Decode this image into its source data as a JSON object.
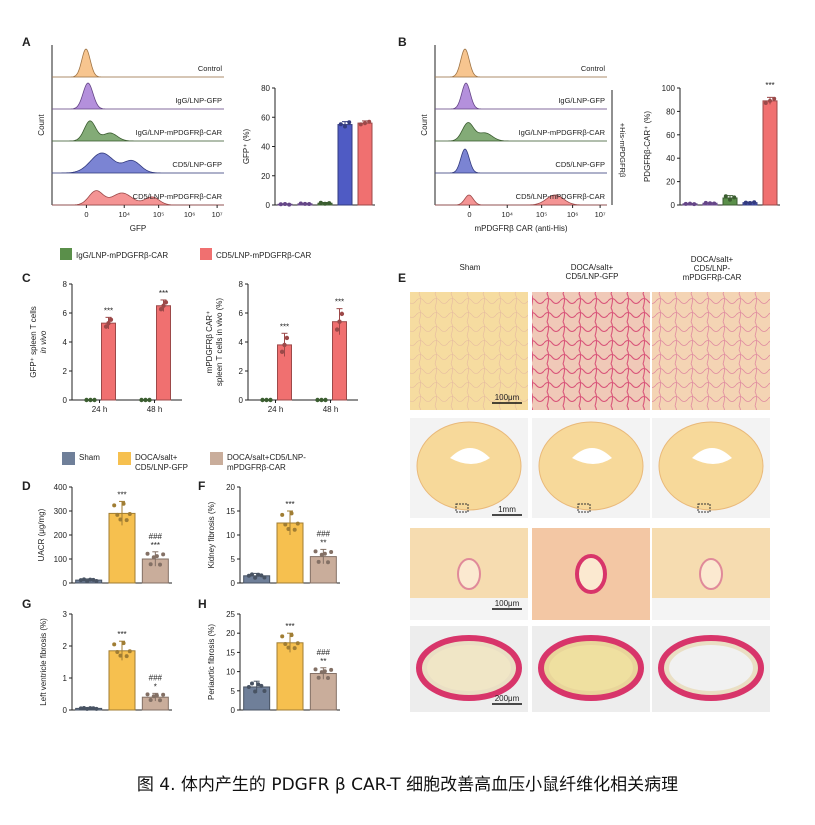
{
  "caption": "图 4. 体内产生的 PDGFR β CAR-T 细胞改善高血压小鼠纤维化相关病理",
  "colors": {
    "control": "#f4b26a",
    "igg_gfp": "#9b6bd0",
    "igg_car": "#5a8f4a",
    "cd5_gfp": "#4f5bc4",
    "cd5_car": "#f07070",
    "sham": "#6f7f99",
    "doca_gfp": "#f6c04f",
    "doca_car": "#c9ad9b"
  },
  "panelA": {
    "label": "A",
    "hist_labels": [
      "Control",
      "IgG/LNP-GFP",
      "IgG/LNP-mPDGFRβ-CAR",
      "CD5/LNP-GFP",
      "CD5/LNP-mPDGFRβ-CAR"
    ],
    "xlabel": "GFP",
    "ylabel": "Count",
    "xticks": [
      "0",
      "10⁴",
      "10⁵",
      "10⁶",
      "10⁷"
    ],
    "bar_ylabel": "GFP⁺ (%)"
  },
  "panelB": {
    "label": "B",
    "hist_labels": [
      "Control",
      "IgG/LNP-GFP",
      "IgG/LNP-mPDGFRβ-CAR",
      "CD5/LNP-GFP",
      "CD5/LNP-mPDGFRβ-CAR"
    ],
    "side_label": "+His-mPDGFRβ",
    "xlabel": "mPDGFRβ CAR (anti-His)",
    "ylabel": "Count",
    "xticks": [
      "0",
      "10⁴",
      "10⁵",
      "10⁶",
      "10⁷"
    ],
    "bar_ylabel": "PDGFRβ-CAR⁺ (%)",
    "sig": "***"
  },
  "panelC": {
    "label": "C",
    "legend": [
      "IgG/LNP-mPDGFRβ-CAR",
      "CD5/LNP-mPDGFRβ-CAR"
    ],
    "left_ylabel_1": "GFP⁺ spleen T cells",
    "left_ylabel_2": "in vivo",
    "right_ylabel_1": "mPDGFRβ CAR⁺",
    "right_ylabel_2": "spleen T cells in vivo (%)",
    "sig": "***"
  },
  "panelE": {
    "label": "E",
    "col_labels": [
      "Sham",
      "DOCA/salt+\nCD5/LNP-GFP",
      "DOCA/salt+\nCD5/LNP-\nmPDGFRβ-CAR"
    ],
    "scale_bars": [
      "100μm",
      "1mm",
      "100μm",
      "200μm"
    ]
  },
  "legendDH": [
    "Sham",
    "DOCA/salt+\nCD5/LNP-GFP",
    "DOCA/salt+CD5/LNP-\nmPDGFRβ-CAR"
  ],
  "panelD": {
    "label": "D",
    "ylabel": "UACR (μg/mg)"
  },
  "panelF": {
    "label": "F",
    "ylabel": "Kidney fibrosis (%)"
  },
  "panelG": {
    "label": "G",
    "ylabel": "Left ventricle fibrosis (%)"
  },
  "panelH": {
    "label": "H",
    "ylabel": "Periaortic fibrosis (%)"
  },
  "chart_data": [
    {
      "id": "A_bar",
      "type": "bar",
      "title": "",
      "ylabel": "GFP⁺ (%)",
      "ylim": [
        0,
        80
      ],
      "yticks": [
        0,
        20,
        40,
        60,
        80
      ],
      "categories": [
        "Control",
        "IgG/LNP-GFP",
        "IgG/LNP-mPDGFRβ-CAR",
        "CD5/LNP-GFP",
        "CD5/LNP-mPDGFRβ-CAR"
      ],
      "values": [
        0.5,
        0.8,
        1.2,
        55,
        56
      ],
      "errors": [
        0.3,
        0.3,
        0.5,
        2,
        1.5
      ]
    },
    {
      "id": "B_bar",
      "type": "bar",
      "title": "",
      "ylabel": "PDGFRβ-CAR⁺ (%)",
      "ylim": [
        0,
        100
      ],
      "yticks": [
        0,
        20,
        40,
        60,
        80,
        100
      ],
      "categories": [
        "Control",
        "IgG/LNP-GFP",
        "IgG/LNP-mPDGFRβ-CAR",
        "CD5/LNP-GFP",
        "CD5/LNP-mPDGFRβ-CAR"
      ],
      "values": [
        1,
        1.5,
        6,
        2,
        89
      ],
      "errors": [
        0.3,
        0.4,
        2,
        0.5,
        3
      ]
    },
    {
      "id": "C_left",
      "type": "bar",
      "ylabel": "GFP⁺ spleen T cells in vivo",
      "ylim": [
        0,
        8
      ],
      "yticks": [
        0,
        2,
        4,
        6,
        8
      ],
      "categories": [
        "24 h",
        "48 h"
      ],
      "series": [
        {
          "name": "IgG/LNP-mPDGFRβ-CAR",
          "values": [
            0,
            0
          ]
        },
        {
          "name": "CD5/LNP-mPDGFRβ-CAR",
          "values": [
            5.3,
            6.5
          ]
        }
      ],
      "errors": [
        [
          0,
          0
        ],
        [
          0.4,
          0.4
        ]
      ]
    },
    {
      "id": "C_right",
      "type": "bar",
      "ylabel": "mPDGFRβ CAR⁺ spleen T cells in vivo (%)",
      "ylim": [
        0,
        8
      ],
      "yticks": [
        0,
        2,
        4,
        6,
        8
      ],
      "categories": [
        "24 h",
        "48 h"
      ],
      "series": [
        {
          "name": "IgG/LNP-mPDGFRβ-CAR",
          "values": [
            0,
            0
          ]
        },
        {
          "name": "CD5/LNP-mPDGFRβ-CAR",
          "values": [
            3.8,
            5.4
          ]
        }
      ],
      "errors": [
        [
          0,
          0
        ],
        [
          0.8,
          0.9
        ]
      ]
    },
    {
      "id": "D",
      "type": "bar",
      "ylabel": "UACR (μg/mg)",
      "ylim": [
        0,
        400
      ],
      "yticks": [
        0,
        100,
        200,
        300,
        400
      ],
      "categories": [
        "Sham",
        "DOCA/salt+CD5/LNP-GFP",
        "DOCA/salt+CD5/LNP-mPDGFRβ-CAR"
      ],
      "values": [
        12,
        290,
        100
      ],
      "errors": [
        5,
        50,
        30
      ],
      "sig": [
        "",
        "***",
        "###\n***"
      ]
    },
    {
      "id": "F",
      "type": "bar",
      "ylabel": "Kidney fibrosis (%)",
      "ylim": [
        0,
        20
      ],
      "yticks": [
        0,
        5,
        10,
        15,
        20
      ],
      "categories": [
        "Sham",
        "DOCA/salt+CD5/LNP-GFP",
        "DOCA/salt+CD5/LNP-mPDGFRβ-CAR"
      ],
      "values": [
        1.5,
        12.5,
        5.5
      ],
      "errors": [
        0.5,
        2.5,
        1.5
      ],
      "sig": [
        "",
        "***",
        "###\n**"
      ]
    },
    {
      "id": "G",
      "type": "bar",
      "ylabel": "Left ventricle fibrosis (%)",
      "ylim": [
        0,
        3
      ],
      "yticks": [
        0,
        1,
        2,
        3
      ],
      "categories": [
        "Sham",
        "DOCA/salt+CD5/LNP-GFP",
        "DOCA/salt+CD5/LNP-mPDGFRβ-CAR"
      ],
      "values": [
        0.05,
        1.85,
        0.4
      ],
      "errors": [
        0.02,
        0.3,
        0.12
      ],
      "sig": [
        "",
        "***",
        "###\n*"
      ]
    },
    {
      "id": "H",
      "type": "bar",
      "ylabel": "Periaortic fibrosis (%)",
      "ylim": [
        0,
        25
      ],
      "yticks": [
        0,
        5,
        10,
        15,
        20,
        25
      ],
      "categories": [
        "Sham",
        "DOCA/salt+CD5/LNP-GFP",
        "DOCA/salt+CD5/LNP-mPDGFRβ-CAR"
      ],
      "values": [
        6,
        17.5,
        9.5
      ],
      "errors": [
        1.5,
        2.5,
        1.5
      ],
      "sig": [
        "",
        "***",
        "###\n**"
      ]
    }
  ]
}
